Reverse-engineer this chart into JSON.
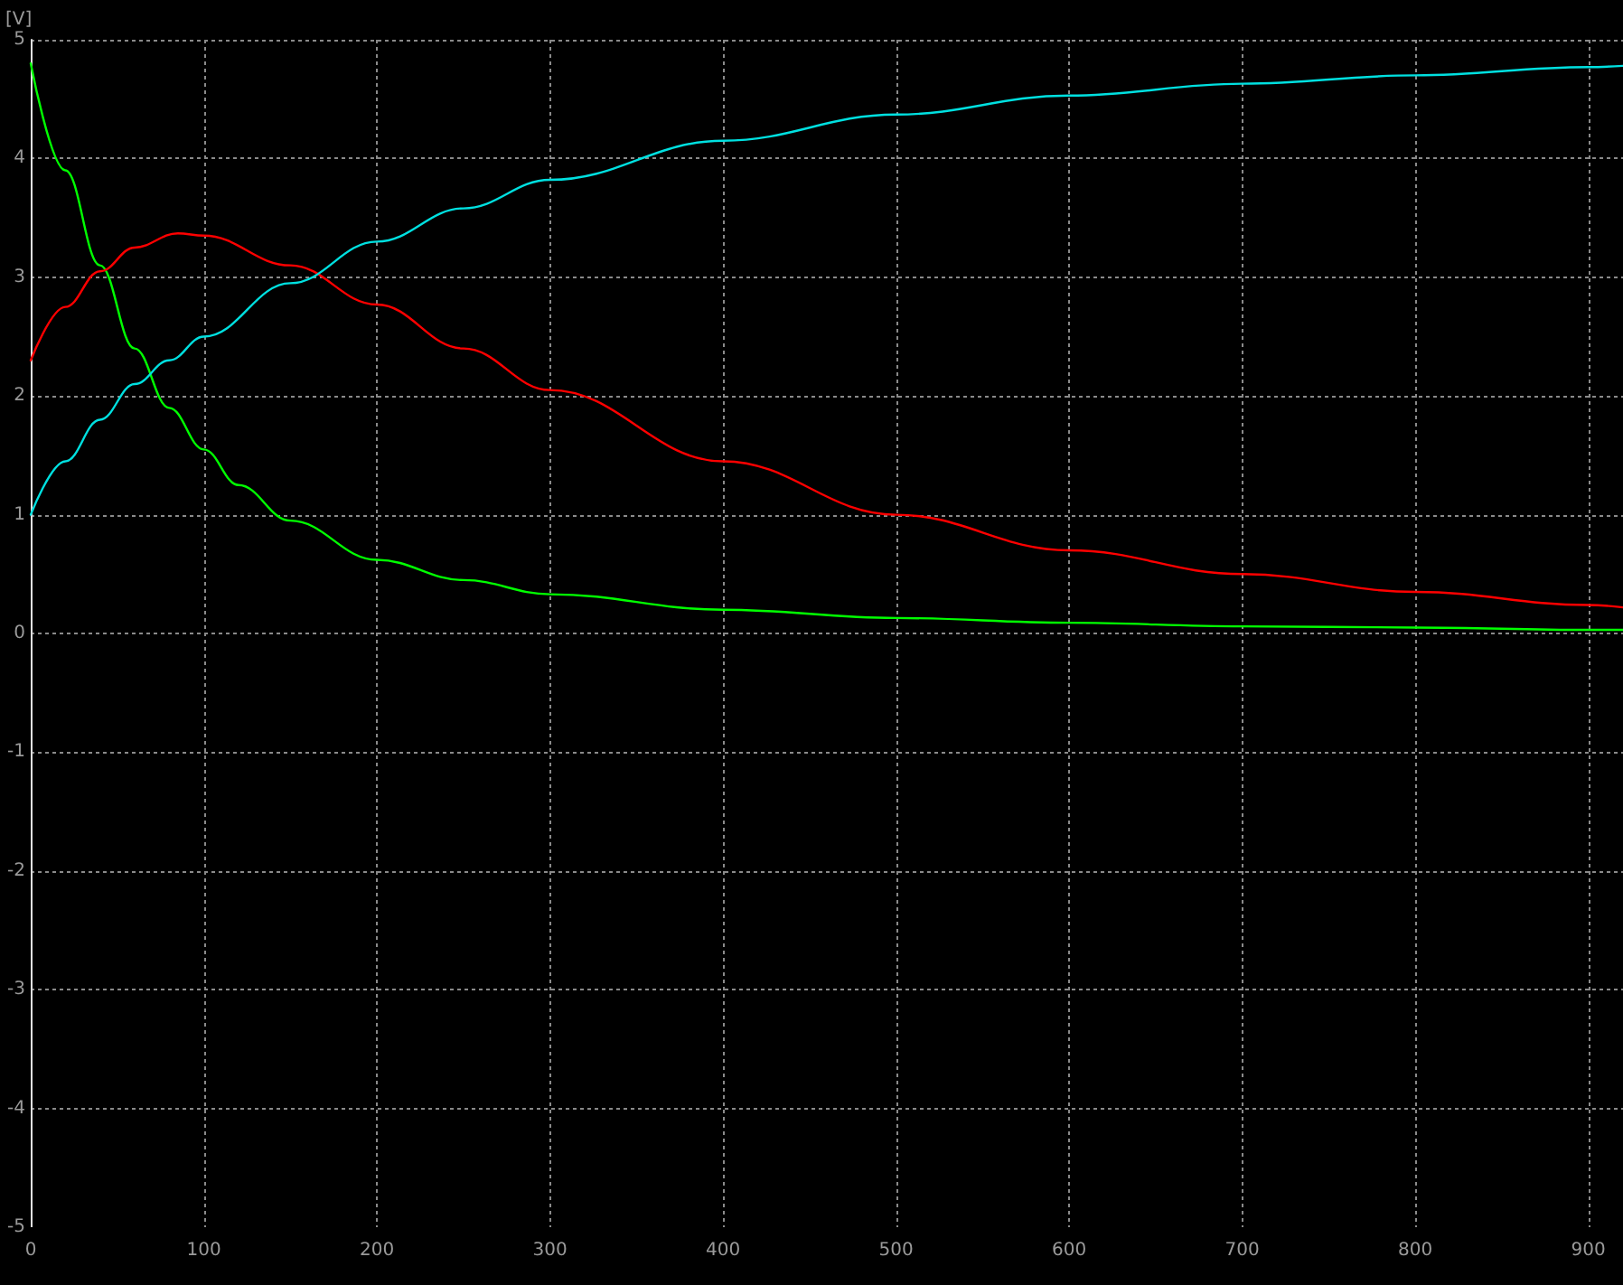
{
  "chart_data": {
    "type": "line",
    "ylabel": "[V]",
    "xlim": [
      0,
      920
    ],
    "ylim": [
      -5,
      5
    ],
    "xticks": [
      0,
      100,
      200,
      300,
      400,
      500,
      600,
      700,
      800,
      900
    ],
    "yticks": [
      -5,
      -4,
      -3,
      -2,
      -1,
      0,
      1,
      2,
      3,
      4,
      5
    ],
    "grid": true,
    "marker": "none",
    "line_style": "solid",
    "series": [
      {
        "color": "#00ff00",
        "x": [
          0,
          20,
          40,
          60,
          80,
          100,
          120,
          150,
          200,
          250,
          300,
          400,
          500,
          600,
          700,
          800,
          900,
          920
        ],
        "values": [
          4.8,
          3.9,
          3.1,
          2.4,
          1.9,
          1.55,
          1.25,
          0.95,
          0.62,
          0.45,
          0.33,
          0.2,
          0.13,
          0.09,
          0.06,
          0.05,
          0.03,
          0.03
        ]
      },
      {
        "color": "#ff0000",
        "x": [
          0,
          20,
          40,
          60,
          85,
          100,
          150,
          200,
          250,
          300,
          400,
          500,
          600,
          700,
          800,
          900,
          920
        ],
        "values": [
          2.3,
          2.75,
          3.05,
          3.25,
          3.37,
          3.35,
          3.1,
          2.77,
          2.4,
          2.05,
          1.45,
          1.0,
          0.7,
          0.5,
          0.35,
          0.24,
          0.22
        ]
      },
      {
        "color": "#00e0e0",
        "x": [
          0,
          20,
          40,
          60,
          80,
          100,
          150,
          200,
          250,
          300,
          400,
          500,
          600,
          700,
          800,
          900,
          920
        ],
        "values": [
          1.0,
          1.45,
          1.8,
          2.1,
          2.3,
          2.5,
          2.95,
          3.3,
          3.58,
          3.82,
          4.15,
          4.37,
          4.53,
          4.63,
          4.7,
          4.77,
          4.78
        ]
      }
    ]
  }
}
